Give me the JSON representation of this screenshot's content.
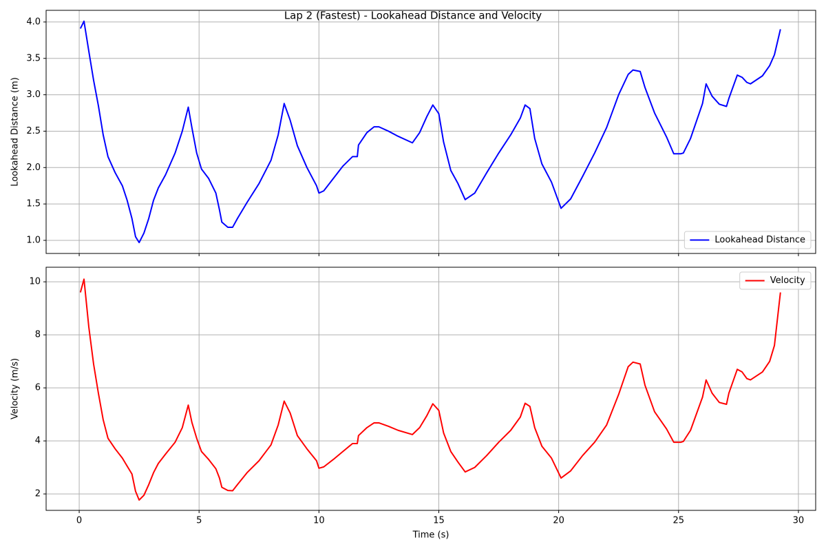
{
  "title": "Lap 2 (Fastest) - Lookahead Distance and Velocity",
  "chart_data": [
    {
      "type": "line",
      "ylabel": "Lookahead Distance (m)",
      "grid": true,
      "legend": "lower right",
      "show_xtick_labels": false,
      "xlim": [
        -1.38,
        30.72
      ],
      "ylim": [
        0.82,
        4.16
      ],
      "xticks": [
        0,
        5,
        10,
        15,
        20,
        25,
        30
      ],
      "yticks": [
        {
          "value": 1,
          "label": "1.0"
        },
        1.5,
        {
          "value": 2,
          "label": "2.0"
        },
        2.5,
        {
          "value": 3,
          "label": "3.0"
        },
        3.5,
        {
          "value": 4,
          "label": "4.0"
        }
      ],
      "x": [
        0.05,
        0.2,
        0.4,
        0.6,
        0.8,
        1.0,
        1.2,
        1.5,
        1.8,
        2.0,
        2.2,
        2.35,
        2.5,
        2.7,
        2.9,
        3.1,
        3.3,
        3.6,
        4.0,
        4.3,
        4.55,
        4.7,
        4.9,
        5.1,
        5.4,
        5.7,
        5.85,
        5.95,
        6.2,
        6.4,
        6.6,
        7.0,
        7.5,
        8.0,
        8.3,
        8.55,
        8.8,
        9.1,
        9.5,
        9.9,
        10.0,
        10.2,
        10.6,
        11.0,
        11.4,
        11.6,
        11.65,
        12.0,
        12.3,
        12.5,
        12.9,
        13.3,
        13.9,
        14.2,
        14.5,
        14.75,
        15.0,
        15.2,
        15.5,
        15.8,
        16.1,
        16.5,
        17.0,
        17.5,
        18.0,
        18.4,
        18.6,
        18.8,
        19.0,
        19.3,
        19.7,
        20.1,
        20.5,
        21.0,
        21.5,
        22.0,
        22.5,
        22.9,
        23.1,
        23.4,
        23.6,
        24.0,
        24.5,
        24.8,
        25.1,
        25.2,
        25.5,
        26.0,
        26.15,
        26.4,
        26.7,
        27.0,
        27.1,
        27.45,
        27.65,
        27.85,
        28.0,
        28.5,
        28.8,
        29.0,
        29.25
      ],
      "series": [
        {
          "name": "Lookahead Distance",
          "color": "#0000ff",
          "values": [
            3.91,
            4.01,
            3.6,
            3.2,
            2.85,
            2.45,
            2.15,
            1.93,
            1.75,
            1.55,
            1.3,
            1.05,
            0.97,
            1.1,
            1.3,
            1.55,
            1.72,
            1.9,
            2.2,
            2.5,
            2.83,
            2.55,
            2.2,
            1.98,
            1.85,
            1.65,
            1.42,
            1.25,
            1.18,
            1.18,
            1.3,
            1.52,
            1.78,
            2.1,
            2.45,
            2.88,
            2.65,
            2.3,
            2.0,
            1.75,
            1.65,
            1.68,
            1.85,
            2.02,
            2.15,
            2.15,
            2.31,
            2.48,
            2.56,
            2.56,
            2.5,
            2.43,
            2.34,
            2.48,
            2.7,
            2.86,
            2.74,
            2.35,
            1.96,
            1.78,
            1.56,
            1.65,
            1.93,
            2.2,
            2.45,
            2.68,
            2.86,
            2.81,
            2.4,
            2.05,
            1.8,
            1.44,
            1.57,
            1.88,
            2.2,
            2.55,
            3.0,
            3.28,
            3.34,
            3.32,
            3.1,
            2.75,
            2.42,
            2.19,
            2.19,
            2.2,
            2.4,
            2.88,
            3.15,
            2.98,
            2.87,
            2.84,
            2.95,
            3.27,
            3.24,
            3.17,
            3.15,
            3.26,
            3.4,
            3.55,
            3.9
          ]
        }
      ]
    },
    {
      "type": "line",
      "xlabel": "Time (s)",
      "ylabel": "Velocity (m/s)",
      "grid": true,
      "legend": "upper right",
      "show_xtick_labels": true,
      "xlim": [
        -1.38,
        30.72
      ],
      "ylim": [
        1.38,
        10.55
      ],
      "xticks": [
        0,
        5,
        10,
        15,
        20,
        25,
        30
      ],
      "yticks": [
        2,
        4,
        6,
        8,
        10
      ],
      "x": [
        0.05,
        0.2,
        0.4,
        0.6,
        0.8,
        1.0,
        1.2,
        1.5,
        1.8,
        2.0,
        2.2,
        2.35,
        2.5,
        2.7,
        2.9,
        3.1,
        3.3,
        3.6,
        4.0,
        4.3,
        4.55,
        4.7,
        4.9,
        5.1,
        5.4,
        5.7,
        5.85,
        5.95,
        6.2,
        6.4,
        6.6,
        7.0,
        7.5,
        8.0,
        8.3,
        8.55,
        8.8,
        9.1,
        9.5,
        9.9,
        10.0,
        10.2,
        10.6,
        11.0,
        11.4,
        11.6,
        11.65,
        12.0,
        12.3,
        12.5,
        12.9,
        13.3,
        13.9,
        14.2,
        14.5,
        14.75,
        15.0,
        15.2,
        15.5,
        15.8,
        16.1,
        16.5,
        17.0,
        17.5,
        18.0,
        18.4,
        18.6,
        18.8,
        19.0,
        19.3,
        19.7,
        20.1,
        20.5,
        21.0,
        21.5,
        22.0,
        22.5,
        22.9,
        23.1,
        23.4,
        23.6,
        24.0,
        24.5,
        24.8,
        25.1,
        25.2,
        25.5,
        26.0,
        26.15,
        26.4,
        26.7,
        27.0,
        27.1,
        27.45,
        27.65,
        27.85,
        28.0,
        28.5,
        28.8,
        29.0,
        29.25
      ],
      "series": [
        {
          "name": "Velocity",
          "color": "#ff0000",
          "values": [
            9.6,
            10.1,
            8.3,
            6.9,
            5.8,
            4.8,
            4.1,
            3.7,
            3.35,
            3.05,
            2.75,
            2.1,
            1.77,
            1.95,
            2.35,
            2.8,
            3.15,
            3.5,
            3.95,
            4.5,
            5.35,
            4.7,
            4.1,
            3.6,
            3.3,
            2.95,
            2.6,
            2.25,
            2.13,
            2.12,
            2.35,
            2.8,
            3.25,
            3.85,
            4.6,
            5.5,
            5.05,
            4.2,
            3.7,
            3.25,
            2.97,
            3.02,
            3.3,
            3.6,
            3.9,
            3.9,
            4.2,
            4.5,
            4.68,
            4.68,
            4.55,
            4.4,
            4.24,
            4.5,
            4.95,
            5.4,
            5.15,
            4.3,
            3.6,
            3.2,
            2.83,
            3.0,
            3.45,
            3.95,
            4.4,
            4.9,
            5.42,
            5.3,
            4.5,
            3.8,
            3.35,
            2.6,
            2.87,
            3.45,
            3.95,
            4.6,
            5.75,
            6.8,
            6.97,
            6.9,
            6.1,
            5.1,
            4.45,
            3.95,
            3.95,
            3.98,
            4.4,
            5.65,
            6.3,
            5.8,
            5.45,
            5.38,
            5.8,
            6.7,
            6.6,
            6.35,
            6.3,
            6.6,
            7.0,
            7.6,
            9.6
          ]
        }
      ]
    }
  ]
}
